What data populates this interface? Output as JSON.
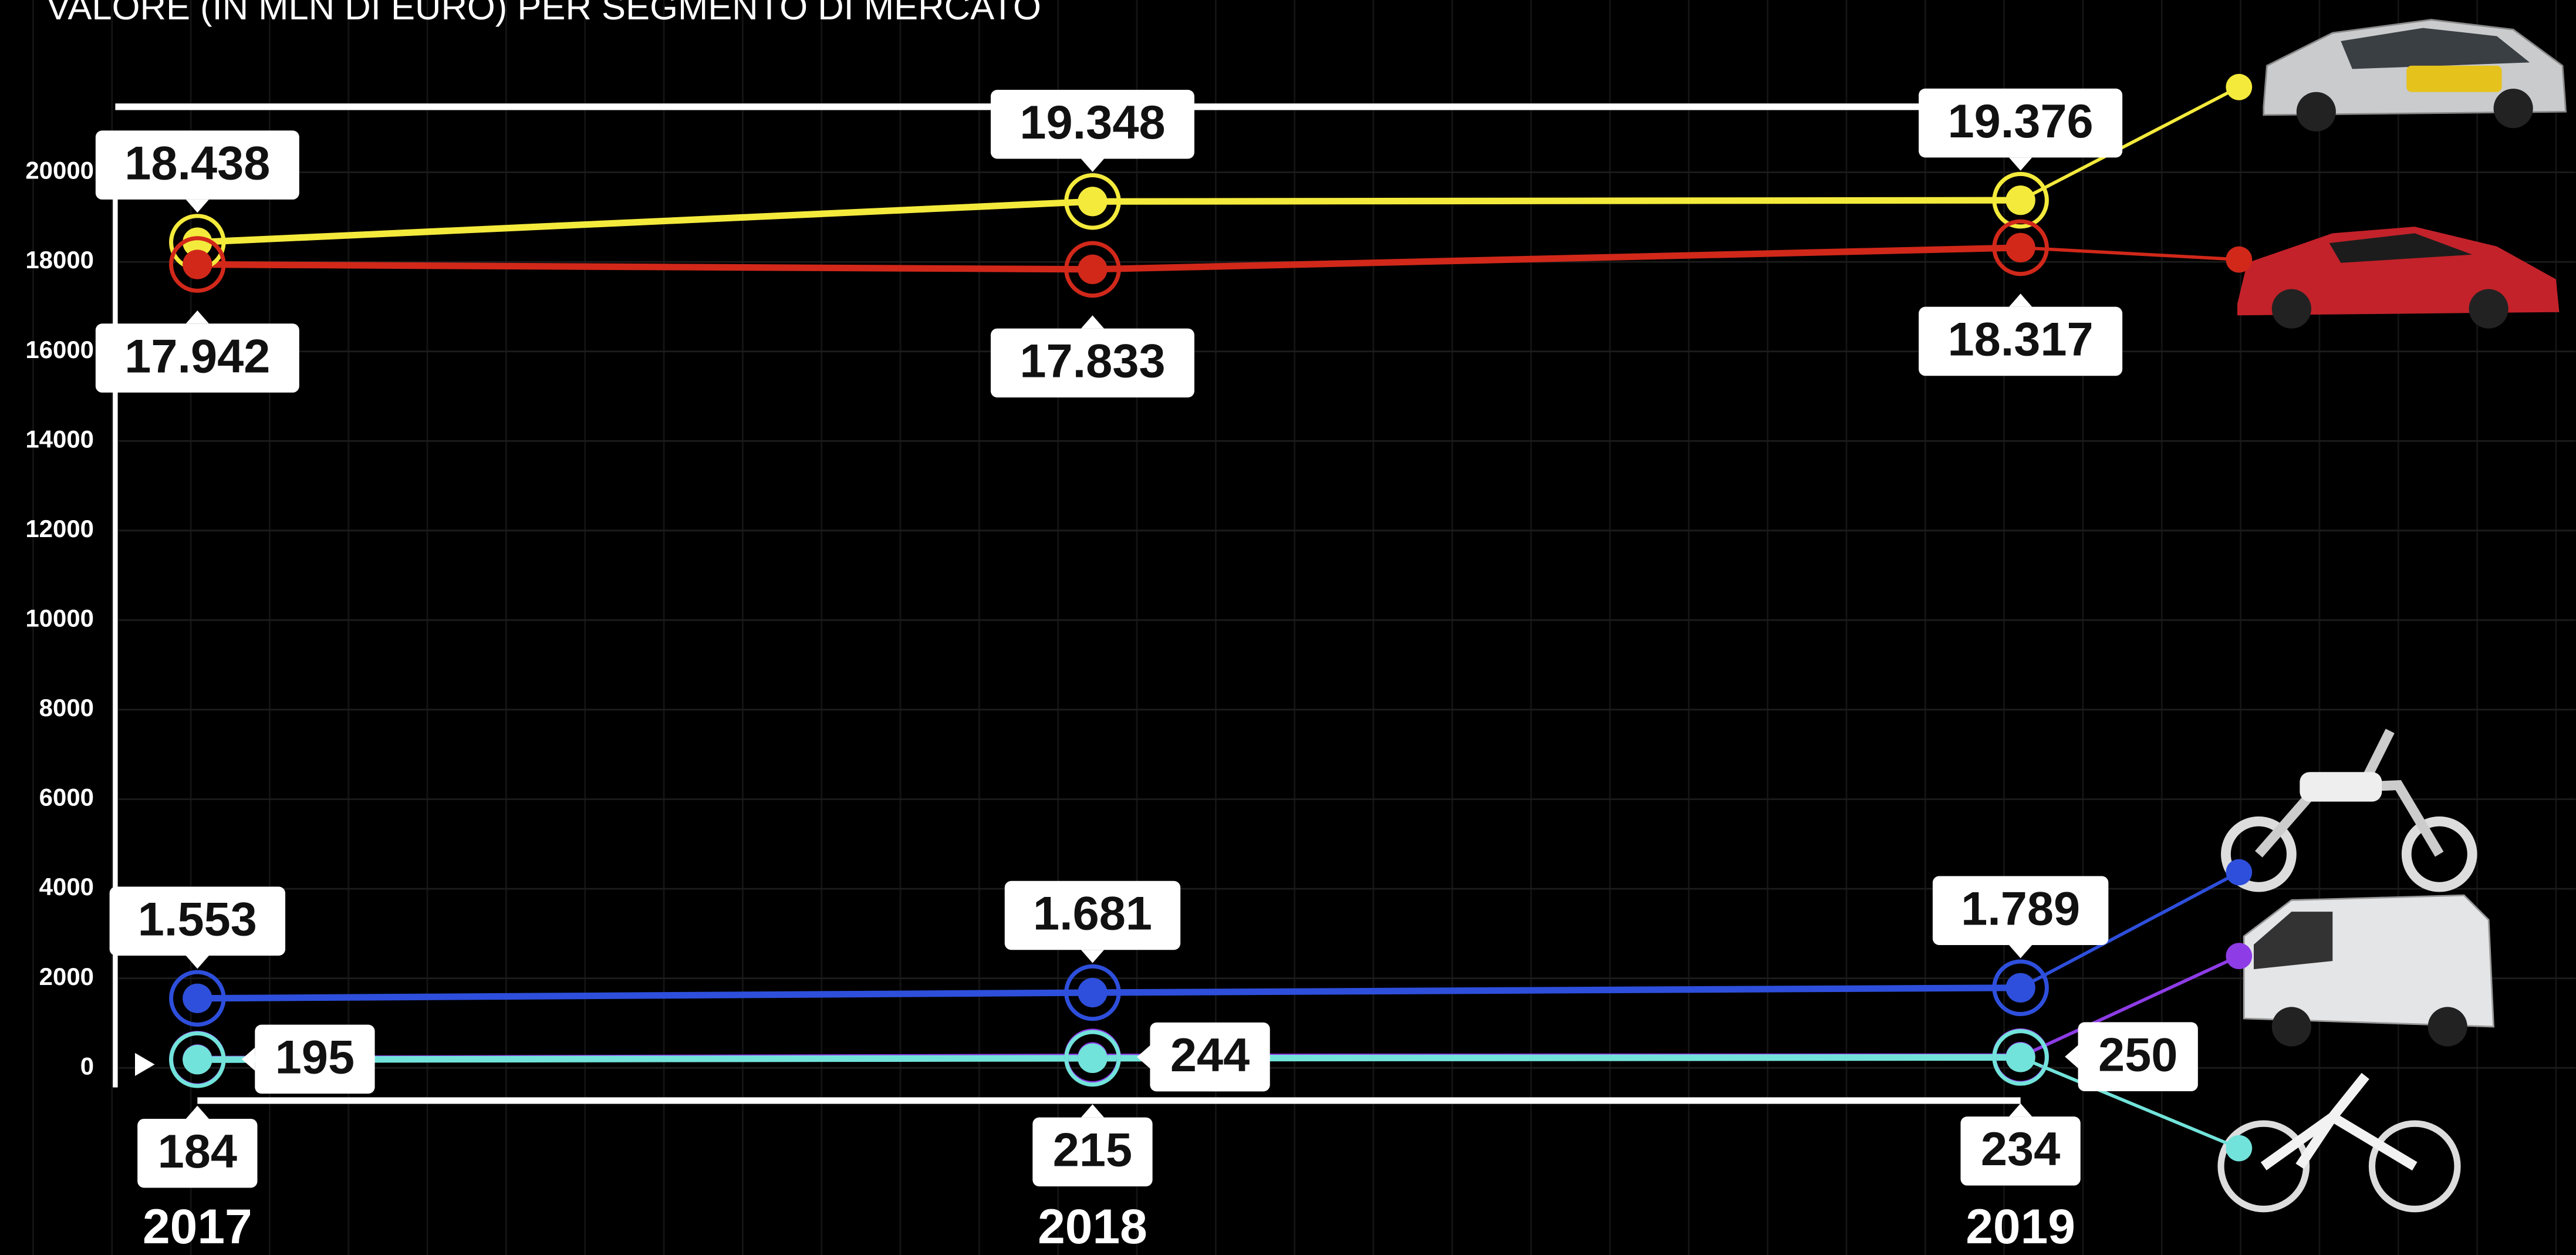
{
  "chart_data": {
    "type": "line",
    "title": "VALORE (IN MLN DI EURO) PER SEGMENTO DI MERCATO",
    "categories": [
      "2017",
      "2018",
      "2019"
    ],
    "series": [
      {
        "color": "#f4ea3c",
        "values": [
          18438,
          19348,
          19376
        ],
        "value_labels": [
          "18.438",
          "19.348",
          "19.376"
        ]
      },
      {
        "color": "#d1281a",
        "values": [
          17942,
          17833,
          18317
        ],
        "value_labels": [
          "17.942",
          "17.833",
          "18.317"
        ]
      },
      {
        "color": "#2e4fdc",
        "values": [
          1553,
          1681,
          1789
        ],
        "value_labels": [
          "1.553",
          "1.681",
          "1.789"
        ]
      },
      {
        "color": "#8e3ce6",
        "values": [
          195,
          244,
          250
        ]
      },
      {
        "color": "#72e3da",
        "values": [
          184,
          215,
          234
        ]
      }
    ],
    "ylim": [
      -400,
      21500
    ],
    "yticks": [
      0,
      2000,
      4000,
      6000,
      8000,
      10000,
      12000,
      14000,
      16000,
      18000,
      20000
    ],
    "grid": true
  }
}
